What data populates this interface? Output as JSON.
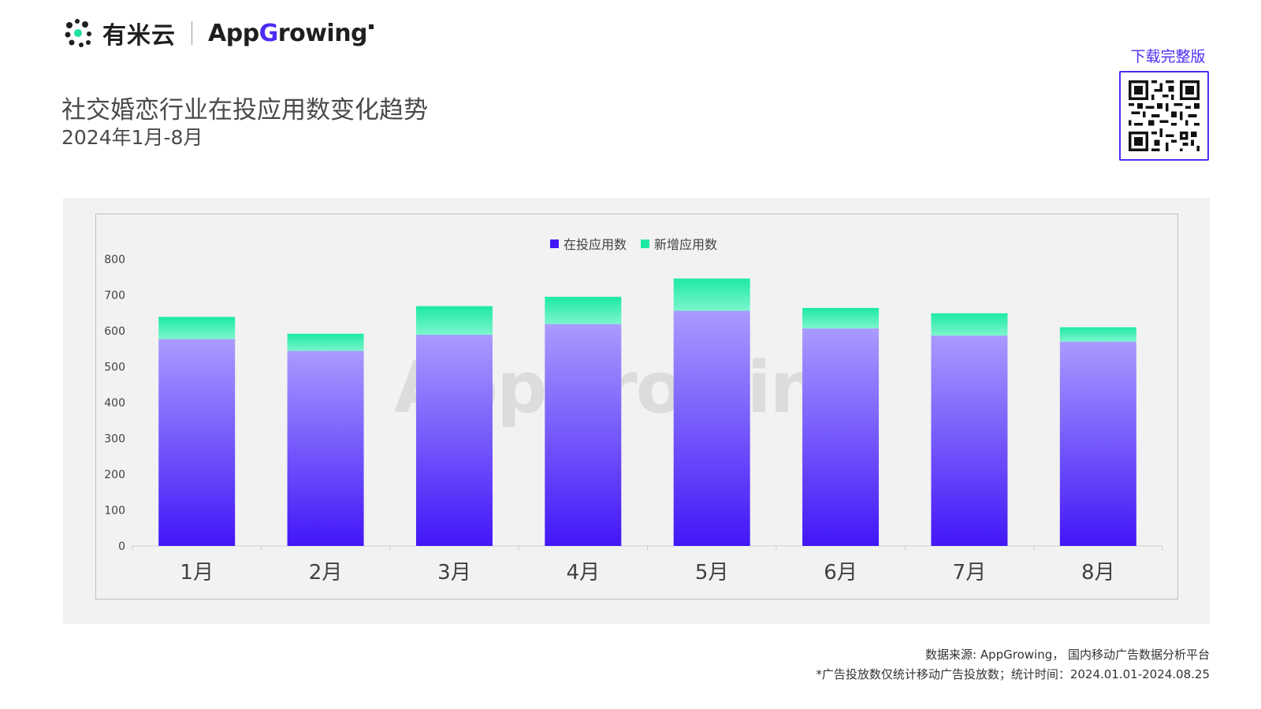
{
  "header": {
    "brand_cn": "有米云",
    "brand_en_prefix": "App",
    "brand_en_g": "G",
    "brand_en_suffix": "rowing"
  },
  "title": "社交婚恋行业在投应用数变化趋势",
  "subtitle": "2024年1月-8月",
  "qr": {
    "label": "下载完整版"
  },
  "watermark": "AppGrowing",
  "colors": {
    "series1_top": "#a99bff",
    "series1_bottom": "#4216f7",
    "series2_top": "#1de9a5",
    "series2_bottom": "#7cf5cd",
    "brand": "#4a2df5"
  },
  "chart_data": {
    "type": "bar",
    "stacked": true,
    "categories": [
      "1月",
      "2月",
      "3月",
      "4月",
      "5月",
      "6月",
      "7月",
      "8月"
    ],
    "series": [
      {
        "name": "在投应用数",
        "values": [
          577,
          544,
          589,
          619,
          656,
          607,
          587,
          570
        ]
      },
      {
        "name": "新增应用数",
        "values": [
          62,
          48,
          80,
          76,
          90,
          57,
          62,
          40
        ]
      }
    ],
    "ylim": [
      0,
      800
    ],
    "yticks": [
      0,
      100,
      200,
      300,
      400,
      500,
      600,
      700,
      800
    ],
    "legend_position": "top-center",
    "grid": false
  },
  "footer": {
    "source": "数据来源: AppGrowing， 国内移动广告数据分析平台",
    "note": "*广告投放数仅统计移动广告投放数；统计时间：2024.01.01-2024.08.25"
  }
}
